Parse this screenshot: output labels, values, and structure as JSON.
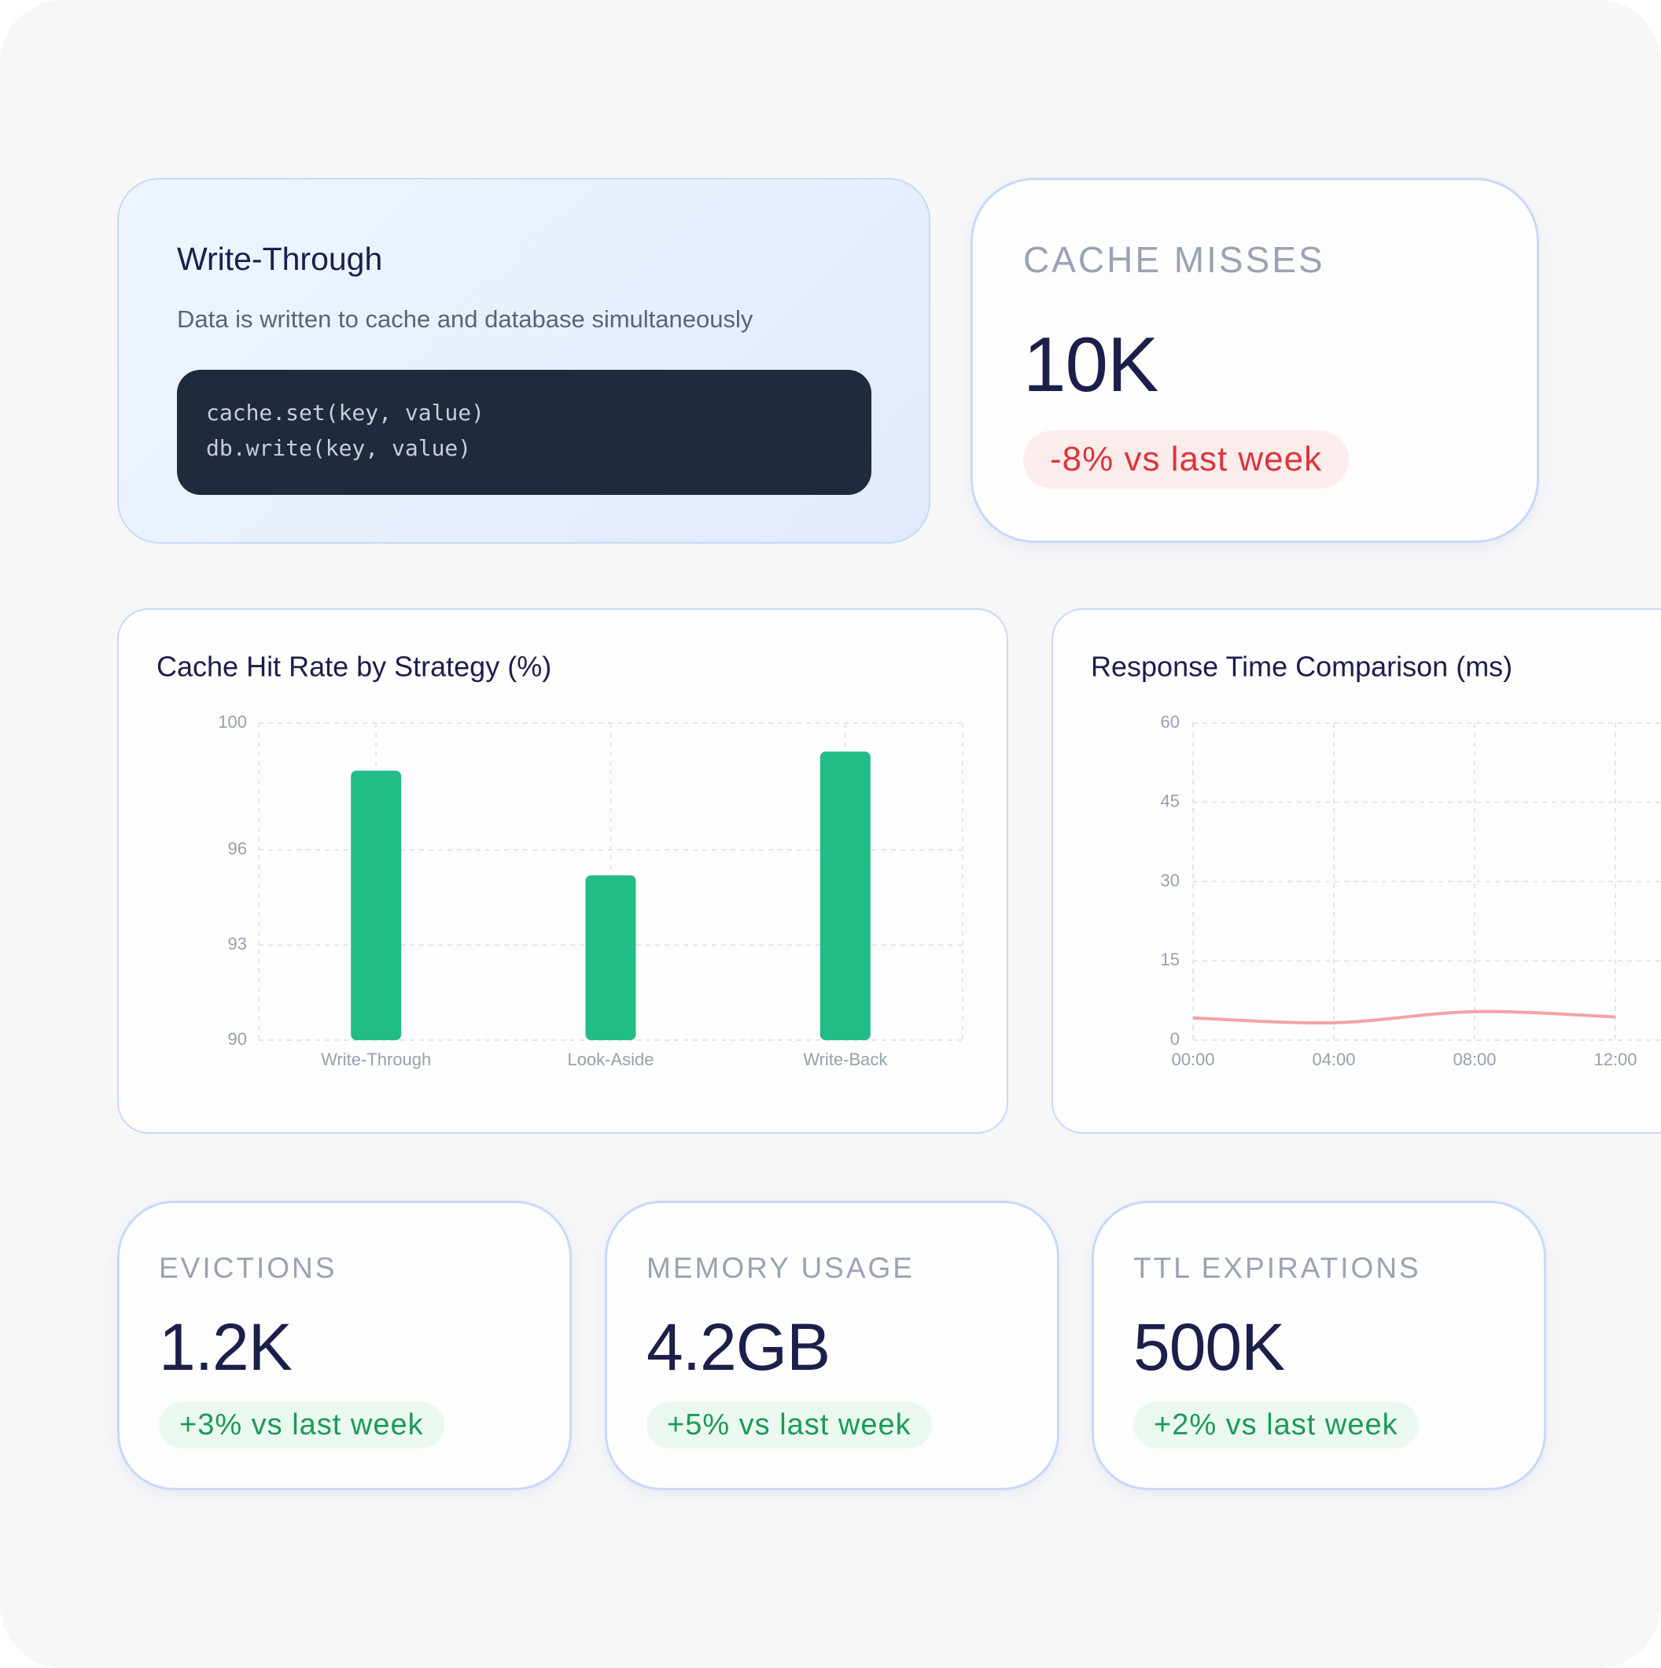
{
  "code_card": {
    "title": "Write-Through",
    "description": "Data is written to cache and database simultaneously",
    "code_lines": [
      "cache.set(key, value)",
      "db.write(key, value)"
    ]
  },
  "highlight_stat": {
    "label": "CACHE MISSES",
    "value": "10K",
    "change": "-8% vs last week"
  },
  "stat_cards": [
    {
      "label": "EVICTIONS",
      "value": "1.2K",
      "change": "+3% vs last week"
    },
    {
      "label": "MEMORY USAGE",
      "value": "4.2GB",
      "change": "+5% vs last week"
    },
    {
      "label": "TTL EXPIRATIONS",
      "value": "500K",
      "change": "+2% vs last week"
    }
  ],
  "chart_data": [
    {
      "type": "bar",
      "title": "Cache Hit Rate by Strategy (%)",
      "categories": [
        "Write-Through",
        "Look-Aside",
        "Write-Back"
      ],
      "values": [
        98.5,
        95.2,
        99.1
      ],
      "color": "#22bc85",
      "ylim": [
        90,
        100
      ],
      "yticks": [
        90,
        93,
        96,
        100
      ],
      "grid": true
    },
    {
      "type": "line",
      "title": "Response Time Comparison (ms)",
      "categories": [
        "00:00",
        "04:00",
        "08:00",
        "12:00"
      ],
      "values": [
        4.2,
        3.3,
        5.4,
        4.4
      ],
      "color": "#f4a3a3",
      "ylim": [
        0,
        60
      ],
      "yticks": [
        0,
        15,
        30,
        45,
        60
      ],
      "grid": true
    }
  ]
}
